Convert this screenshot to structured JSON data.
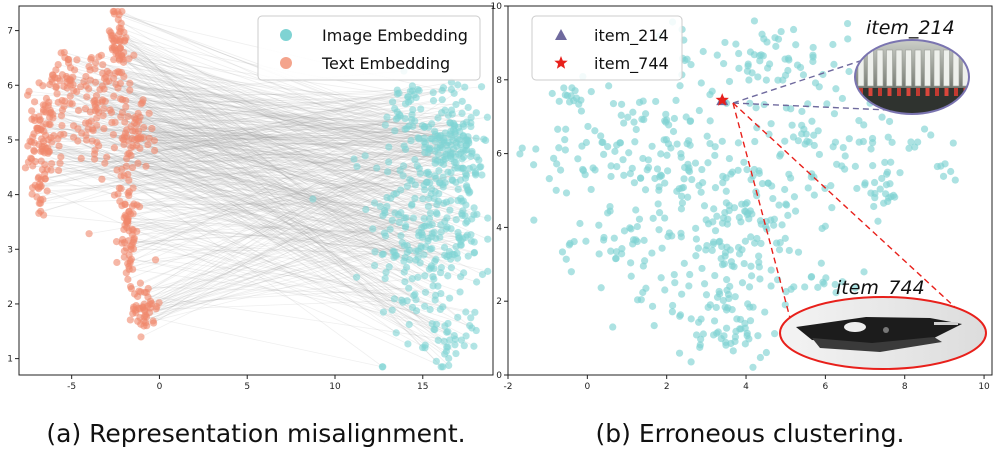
{
  "chart_data": [
    {
      "type": "scatter",
      "caption": "(a) Representation misalignment.",
      "xlim": [
        -8,
        19
      ],
      "ylim": [
        0.7,
        7.45
      ],
      "x_ticks": [
        -5,
        0,
        5,
        10,
        15
      ],
      "y_ticks": [
        1,
        2,
        3,
        4,
        5,
        6,
        7
      ],
      "grid": false,
      "legend_placement": "top-right",
      "pair_lines": "gray lines connect each text embedding point to its paired image embedding point",
      "series": [
        {
          "name": "Image Embedding",
          "color": "#7fd3d3",
          "clusters": [
            {
              "cx": 15.2,
              "cy": 3.4,
              "sx": 1.6,
              "sy": 1.1,
              "n": 260
            },
            {
              "cx": 16.8,
              "cy": 5.0,
              "sx": 0.8,
              "sy": 0.5,
              "n": 110
            },
            {
              "cx": 14.0,
              "cy": 5.5,
              "sx": 0.6,
              "sy": 0.3,
              "n": 40
            },
            {
              "cx": 16.8,
              "cy": 1.3,
              "sx": 0.8,
              "sy": 0.25,
              "n": 30
            },
            {
              "cx": 17.5,
              "cy": 3.8,
              "sx": 0.5,
              "sy": 0.6,
              "n": 35
            }
          ]
        },
        {
          "name": "Text Embedding",
          "color": "#f0876a",
          "clusters": [
            {
              "cx": -6.6,
              "cy": 5.0,
              "sx": 0.5,
              "sy": 0.5,
              "n": 90
            },
            {
              "cx": -5.5,
              "cy": 6.1,
              "sx": 0.4,
              "sy": 0.25,
              "n": 35
            },
            {
              "cx": -3.5,
              "cy": 5.6,
              "sx": 1.0,
              "sy": 0.6,
              "n": 110
            },
            {
              "cx": -2.4,
              "cy": 6.8,
              "sx": 0.35,
              "sy": 0.35,
              "n": 50
            },
            {
              "cx": -1.4,
              "cy": 5.0,
              "sx": 0.5,
              "sy": 0.3,
              "n": 50
            },
            {
              "cx": -1.8,
              "cy": 3.4,
              "sx": 0.3,
              "sy": 0.6,
              "n": 70
            },
            {
              "cx": -0.8,
              "cy": 1.95,
              "sx": 0.35,
              "sy": 0.25,
              "n": 45
            },
            {
              "cx": -6.9,
              "cy": 4.0,
              "sx": 0.2,
              "sy": 0.2,
              "n": 15
            }
          ]
        }
      ]
    },
    {
      "type": "scatter",
      "caption": "(b) Erroneous clustering.",
      "xlim": [
        -2,
        10.2
      ],
      "ylim": [
        0,
        10
      ],
      "x_ticks": [
        -2,
        0,
        2,
        4,
        6,
        8,
        10
      ],
      "y_ticks": [
        0,
        2,
        4,
        6,
        8,
        10
      ],
      "grid": false,
      "legend_placement": "top-left",
      "points_color": "#7fd3d3",
      "clusters": [
        {
          "cx": 3.7,
          "cy": 4.2,
          "sx": 1.0,
          "sy": 1.0,
          "n": 140
        },
        {
          "cx": 1.3,
          "cy": 6.1,
          "sx": 1.3,
          "sy": 0.8,
          "n": 120
        },
        {
          "cx": 4.4,
          "cy": 8.6,
          "sx": 1.1,
          "sy": 0.6,
          "n": 70
        },
        {
          "cx": 6.3,
          "cy": 6.3,
          "sx": 1.3,
          "sy": 0.8,
          "n": 85
        },
        {
          "cx": 2.8,
          "cy": 2.0,
          "sx": 1.1,
          "sy": 0.6,
          "n": 60
        },
        {
          "cx": 0.7,
          "cy": 3.5,
          "sx": 0.8,
          "sy": 0.4,
          "n": 30
        },
        {
          "cx": 7.4,
          "cy": 5.1,
          "sx": 0.3,
          "sy": 0.3,
          "n": 20
        },
        {
          "cx": -0.4,
          "cy": 7.6,
          "sx": 0.2,
          "sy": 0.3,
          "n": 15
        },
        {
          "cx": 3.8,
          "cy": 1.0,
          "sx": 0.4,
          "sy": 0.35,
          "n": 30
        },
        {
          "cx": 9.0,
          "cy": 5.6,
          "sx": 0.1,
          "sy": 0.1,
          "n": 5
        },
        {
          "cx": 6.0,
          "cy": 2.7,
          "sx": 0.5,
          "sy": 0.3,
          "n": 15
        }
      ],
      "highlights": [
        {
          "name": "item_214",
          "marker": "triangle",
          "color": "#6f6a9e",
          "x": 3.4,
          "y": 7.45
        },
        {
          "name": "item_744",
          "marker": "star",
          "color": "#e8201b",
          "x": 3.4,
          "y": 7.45
        }
      ],
      "callouts": [
        {
          "label": "item_214",
          "border_color": "#7a74b0",
          "line_color": "#6f6a9e",
          "content": "photo of forks in a box"
        },
        {
          "label": "item_744",
          "border_color": "#e8201b",
          "line_color": "#e8201b",
          "content": "photo of a black folding knife"
        }
      ]
    }
  ]
}
